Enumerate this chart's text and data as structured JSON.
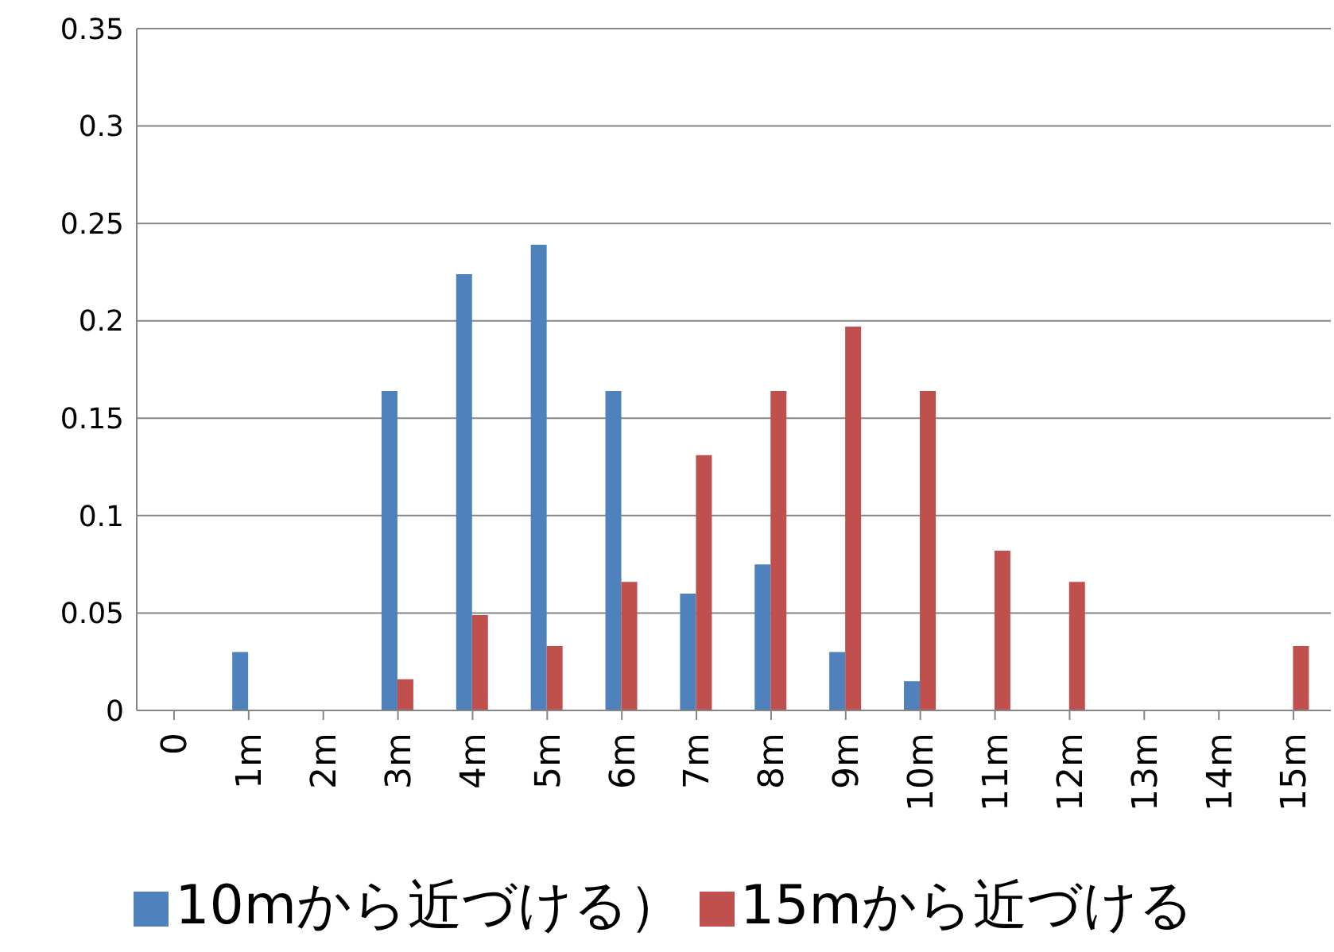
{
  "chart_data": {
    "type": "bar",
    "categories": [
      "0",
      "1m",
      "2m",
      "3m",
      "4m",
      "5m",
      "6m",
      "7m",
      "8m",
      "9m",
      "10m",
      "11m",
      "12m",
      "13m",
      "14m",
      "15m"
    ],
    "series": [
      {
        "name": "10mから近づける）",
        "color": "#4f81bd",
        "values": [
          0,
          0.03,
          0,
          0.164,
          0.224,
          0.239,
          0.164,
          0.06,
          0.075,
          0.03,
          0.015,
          0,
          0,
          0,
          0,
          0
        ]
      },
      {
        "name": "15mから近づける",
        "color": "#c0504d",
        "values": [
          0,
          0,
          0,
          0.016,
          0.049,
          0.033,
          0.066,
          0.131,
          0.164,
          0.197,
          0.164,
          0.082,
          0.066,
          0,
          0,
          0.033
        ]
      }
    ],
    "ylim": [
      0,
      0.35
    ],
    "yticks": [
      0,
      0.05,
      0.1,
      0.15,
      0.2,
      0.25,
      0.3,
      0.35
    ],
    "grid": "y",
    "legend": "bottom"
  }
}
